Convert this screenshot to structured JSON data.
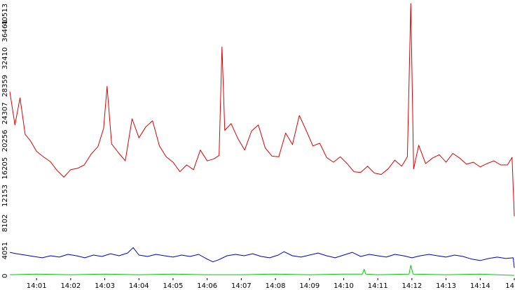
{
  "chart_data": {
    "type": "line",
    "title": "",
    "xlabel": "",
    "ylabel": "",
    "ylim": [
      0,
      40513
    ],
    "y_ticks": [
      "0",
      "4051",
      "8102",
      "12153",
      "16205",
      "20256",
      "24307",
      "28359",
      "32410",
      "36461",
      "40513"
    ],
    "xlim": [
      "14:00:13",
      "14:15:00"
    ],
    "x_ticks": [
      "14:01",
      "14:02",
      "14:03",
      "14:04",
      "14:05",
      "14:06",
      "14:07",
      "14:08",
      "14:09",
      "14:10",
      "14:11",
      "14:12",
      "14:13",
      "14:14",
      "14"
    ],
    "grid": false,
    "x_unit": "time (hh:mm)",
    "series": [
      {
        "color": "#dd0000",
        "points": [
          [
            "14:00:13",
            27500
          ],
          [
            "14:00:22",
            22600
          ],
          [
            "14:00:31",
            26600
          ],
          [
            "14:00:40",
            21200
          ],
          [
            "14:00:49",
            20300
          ],
          [
            "14:01:00",
            18700
          ],
          [
            "14:01:12",
            17900
          ],
          [
            "14:01:24",
            17200
          ],
          [
            "14:01:36",
            15900
          ],
          [
            "14:01:48",
            14900
          ],
          [
            "14:02:00",
            16000
          ],
          [
            "14:02:12",
            16200
          ],
          [
            "14:02:24",
            16700
          ],
          [
            "14:02:36",
            18300
          ],
          [
            "14:02:48",
            19400
          ],
          [
            "14:02:58",
            22100
          ],
          [
            "14:03:04",
            28300
          ],
          [
            "14:03:12",
            19800
          ],
          [
            "14:03:24",
            18500
          ],
          [
            "14:03:36",
            17300
          ],
          [
            "14:03:48",
            23500
          ],
          [
            "14:04:00",
            20700
          ],
          [
            "14:04:12",
            22300
          ],
          [
            "14:04:24",
            23200
          ],
          [
            "14:04:36",
            19500
          ],
          [
            "14:04:48",
            17900
          ],
          [
            "14:05:00",
            17100
          ],
          [
            "14:05:12",
            15700
          ],
          [
            "14:05:24",
            16700
          ],
          [
            "14:05:36",
            16000
          ],
          [
            "14:05:48",
            18900
          ],
          [
            "14:06:00",
            17300
          ],
          [
            "14:06:12",
            17600
          ],
          [
            "14:06:21",
            18100
          ],
          [
            "14:06:26",
            34100
          ],
          [
            "14:06:31",
            21800
          ],
          [
            "14:06:42",
            22800
          ],
          [
            "14:06:54",
            20600
          ],
          [
            "14:07:06",
            18900
          ],
          [
            "14:07:18",
            21700
          ],
          [
            "14:07:30",
            22600
          ],
          [
            "14:07:42",
            19200
          ],
          [
            "14:07:54",
            18000
          ],
          [
            "14:08:06",
            17900
          ],
          [
            "14:08:18",
            21400
          ],
          [
            "14:08:30",
            19700
          ],
          [
            "14:08:42",
            24000
          ],
          [
            "14:08:54",
            21800
          ],
          [
            "14:09:06",
            19500
          ],
          [
            "14:09:18",
            19900
          ],
          [
            "14:09:30",
            17800
          ],
          [
            "14:09:42",
            17100
          ],
          [
            "14:09:54",
            17900
          ],
          [
            "14:10:06",
            16900
          ],
          [
            "14:10:18",
            15700
          ],
          [
            "14:10:30",
            15600
          ],
          [
            "14:10:42",
            16500
          ],
          [
            "14:10:54",
            15500
          ],
          [
            "14:11:06",
            15300
          ],
          [
            "14:11:18",
            16100
          ],
          [
            "14:11:30",
            17400
          ],
          [
            "14:11:42",
            16500
          ],
          [
            "14:11:52",
            17900
          ],
          [
            "14:11:58",
            40513
          ],
          [
            "14:12:03",
            16100
          ],
          [
            "14:12:12",
            19600
          ],
          [
            "14:12:24",
            16900
          ],
          [
            "14:12:36",
            17700
          ],
          [
            "14:12:48",
            18200
          ],
          [
            "14:13:00",
            17100
          ],
          [
            "14:13:12",
            18400
          ],
          [
            "14:13:24",
            17700
          ],
          [
            "14:13:36",
            16800
          ],
          [
            "14:13:48",
            17100
          ],
          [
            "14:14:00",
            16400
          ],
          [
            "14:14:12",
            16900
          ],
          [
            "14:14:24",
            17300
          ],
          [
            "14:14:36",
            16700
          ],
          [
            "14:14:48",
            16700
          ],
          [
            "14:14:56",
            17800
          ],
          [
            "14:15:00",
            9100
          ]
        ]
      },
      {
        "color": "#0000cc",
        "points": [
          [
            "14:00:13",
            3800
          ],
          [
            "14:00:25",
            3600
          ],
          [
            "14:00:40",
            3400
          ],
          [
            "14:00:55",
            3200
          ],
          [
            "14:01:10",
            3000
          ],
          [
            "14:01:25",
            3300
          ],
          [
            "14:01:40",
            3100
          ],
          [
            "14:01:55",
            3500
          ],
          [
            "14:02:10",
            3300
          ],
          [
            "14:02:25",
            3000
          ],
          [
            "14:02:40",
            3400
          ],
          [
            "14:02:55",
            3200
          ],
          [
            "14:03:10",
            3600
          ],
          [
            "14:03:25",
            3300
          ],
          [
            "14:03:40",
            3700
          ],
          [
            "14:03:50",
            4500
          ],
          [
            "14:04:00",
            3400
          ],
          [
            "14:04:15",
            3200
          ],
          [
            "14:04:30",
            3500
          ],
          [
            "14:04:45",
            3300
          ],
          [
            "14:05:00",
            3100
          ],
          [
            "14:05:15",
            3400
          ],
          [
            "14:05:30",
            3200
          ],
          [
            "14:05:45",
            3500
          ],
          [
            "14:06:00",
            2800
          ],
          [
            "14:06:10",
            2400
          ],
          [
            "14:06:20",
            2700
          ],
          [
            "14:06:35",
            3300
          ],
          [
            "14:06:50",
            3500
          ],
          [
            "14:07:05",
            3300
          ],
          [
            "14:07:20",
            3600
          ],
          [
            "14:07:35",
            3200
          ],
          [
            "14:07:50",
            3000
          ],
          [
            "14:08:05",
            3400
          ],
          [
            "14:08:15",
            3900
          ],
          [
            "14:08:30",
            3300
          ],
          [
            "14:08:45",
            3100
          ],
          [
            "14:09:00",
            3400
          ],
          [
            "14:09:15",
            3700
          ],
          [
            "14:09:30",
            3300
          ],
          [
            "14:09:45",
            3000
          ],
          [
            "14:10:00",
            3400
          ],
          [
            "14:10:15",
            3800
          ],
          [
            "14:10:30",
            3200
          ],
          [
            "14:10:45",
            3500
          ],
          [
            "14:11:00",
            3300
          ],
          [
            "14:11:15",
            3100
          ],
          [
            "14:11:30",
            3500
          ],
          [
            "14:11:45",
            3300
          ],
          [
            "14:12:00",
            3000
          ],
          [
            "14:12:15",
            3300
          ],
          [
            "14:12:30",
            3500
          ],
          [
            "14:12:45",
            3300
          ],
          [
            "14:13:00",
            3100
          ],
          [
            "14:13:15",
            3400
          ],
          [
            "14:13:30",
            3200
          ],
          [
            "14:13:45",
            2800
          ],
          [
            "14:14:00",
            2600
          ],
          [
            "14:14:15",
            2900
          ],
          [
            "14:14:30",
            3100
          ],
          [
            "14:14:45",
            2900
          ],
          [
            "14:14:58",
            3000
          ],
          [
            "14:15:00",
            1500
          ]
        ]
      },
      {
        "color": "#00cc00",
        "points": [
          [
            "14:00:13",
            500
          ],
          [
            "14:01:00",
            600
          ],
          [
            "14:02:00",
            500
          ],
          [
            "14:03:00",
            600
          ],
          [
            "14:04:00",
            500
          ],
          [
            "14:05:00",
            600
          ],
          [
            "14:06:00",
            500
          ],
          [
            "14:07:00",
            500
          ],
          [
            "14:08:00",
            600
          ],
          [
            "14:09:00",
            500
          ],
          [
            "14:10:00",
            600
          ],
          [
            "14:10:33",
            600
          ],
          [
            "14:10:36",
            1300
          ],
          [
            "14:10:39",
            600
          ],
          [
            "14:11:00",
            500
          ],
          [
            "14:11:55",
            600
          ],
          [
            "14:11:58",
            1900
          ],
          [
            "14:12:02",
            600
          ],
          [
            "14:13:00",
            500
          ],
          [
            "14:14:00",
            600
          ],
          [
            "14:15:00",
            400
          ]
        ]
      }
    ]
  }
}
